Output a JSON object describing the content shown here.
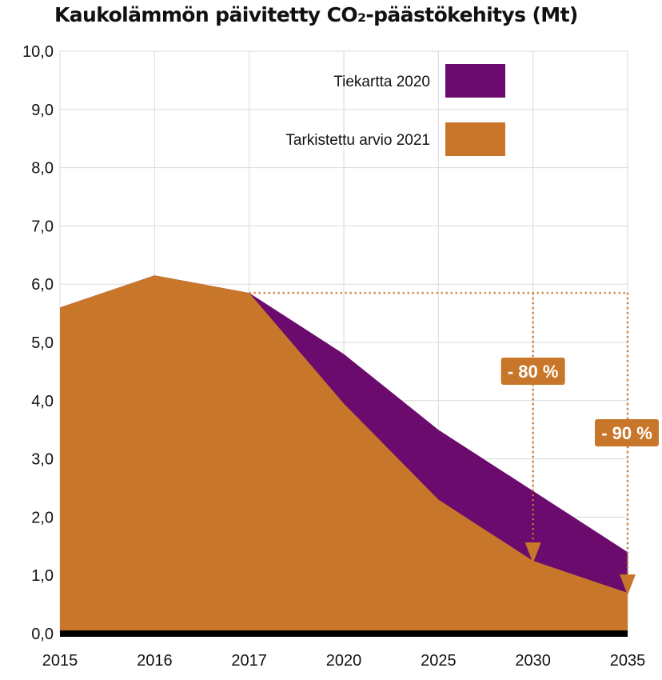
{
  "chart_data": {
    "type": "area",
    "title": "Kaukolämmön päivitetty CO₂-päästökehitys (Mt)",
    "xlabel": "",
    "ylabel": "",
    "x": [
      "2015",
      "2016",
      "2017",
      "2020",
      "2025",
      "2030",
      "2035"
    ],
    "ylim": [
      0,
      10
    ],
    "yticks": [
      "0,0",
      "1,0",
      "2,0",
      "3,0",
      "4,0",
      "5,0",
      "6,0",
      "7,0",
      "8,0",
      "9,0",
      "10,0"
    ],
    "grid": true,
    "legend_position": "top-right",
    "series": [
      {
        "name": "Tiekartta 2020",
        "color": "#6b0b6e",
        "values": [
          5.6,
          6.15,
          5.85,
          4.8,
          3.5,
          2.45,
          1.4
        ]
      },
      {
        "name": "Tarkistettu arvio 2021",
        "color": "#c8772a",
        "values": [
          5.6,
          6.15,
          5.85,
          3.95,
          2.3,
          1.25,
          0.7
        ]
      }
    ],
    "annotations": [
      {
        "label": "- 80 %",
        "target_x": "2030"
      },
      {
        "label": "- 90 %",
        "target_x": "2035"
      }
    ]
  }
}
